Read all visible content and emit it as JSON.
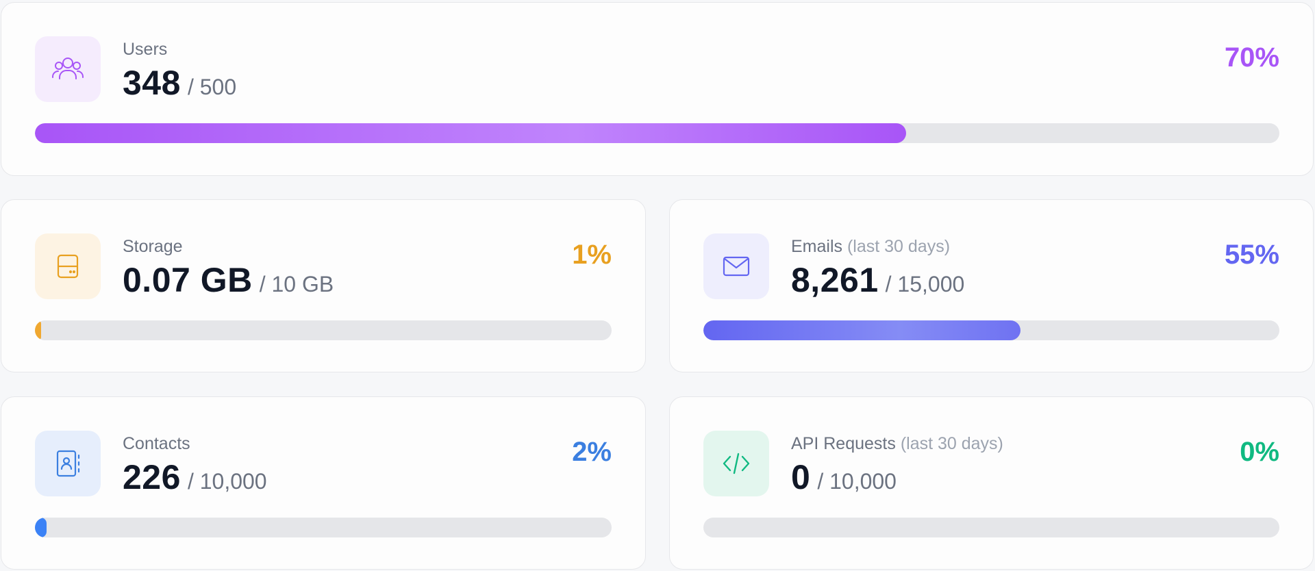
{
  "cards": [
    {
      "id": "users",
      "label": "Users",
      "sublabel": "",
      "value": "348",
      "limit": "/ 500",
      "percent_label": "70%",
      "fill_fraction": 0.7,
      "icon": "users-icon",
      "accent": "#a855f7",
      "icon_bg": "#f5ecfd",
      "fill_gradient": [
        "#a855f7",
        "#c084fc",
        "#a855f7"
      ]
    },
    {
      "id": "storage",
      "label": "Storage",
      "sublabel": "",
      "value": "0.07 GB",
      "limit": "/ 10 GB",
      "percent_label": "1%",
      "fill_fraction": 0.01,
      "icon": "hard-drive-icon",
      "accent": "#e8a020",
      "icon_bg": "#fdf3e3",
      "fill_gradient": [
        "#f0a830",
        "#f0a830",
        "#f0a830"
      ]
    },
    {
      "id": "emails",
      "label": "Emails",
      "sublabel": "(last 30 days)",
      "value": "8,261",
      "limit": "/ 15,000",
      "percent_label": "55%",
      "fill_fraction": 0.55,
      "icon": "mail-icon",
      "accent": "#6366f1",
      "icon_bg": "#eeeefd",
      "fill_gradient": [
        "#6366f1",
        "#858cf5",
        "#6f72f2"
      ]
    },
    {
      "id": "contacts",
      "label": "Contacts",
      "sublabel": "",
      "value": "226",
      "limit": "/ 10,000",
      "percent_label": "2%",
      "fill_fraction": 0.02,
      "icon": "contact-book-icon",
      "accent": "#3b7fe0",
      "icon_bg": "#e6eefc",
      "fill_gradient": [
        "#3b82f6",
        "#3b82f6",
        "#3b82f6"
      ]
    },
    {
      "id": "api",
      "label": "API Requests",
      "sublabel": "(last 30 days)",
      "value": "0",
      "limit": "/ 10,000",
      "percent_label": "0%",
      "fill_fraction": 0.0,
      "icon": "code-icon",
      "accent": "#10b981",
      "icon_bg": "#e3f6ee",
      "fill_gradient": [
        "#10b981",
        "#10b981",
        "#10b981"
      ]
    }
  ]
}
